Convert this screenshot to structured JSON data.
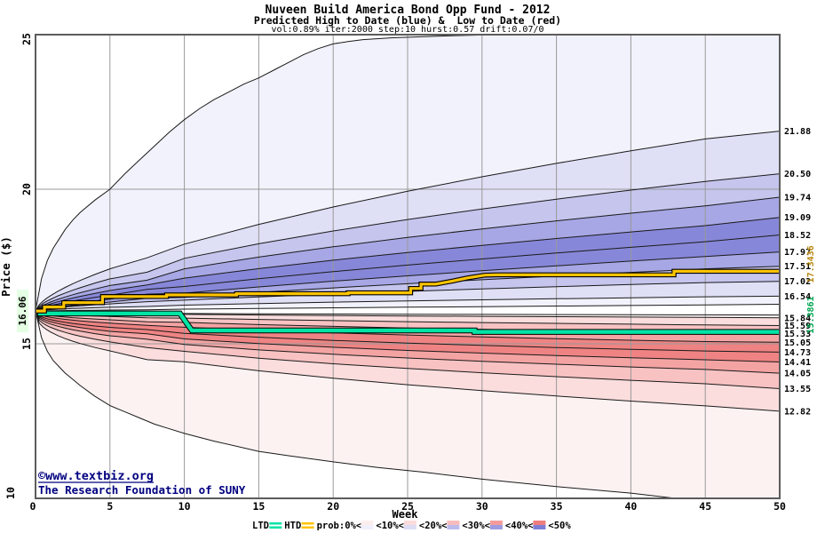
{
  "chart_data": {
    "type": "fan",
    "title": "Nuveen Build America Bond Opp Fund - 2012",
    "subtitle": "Predicted High to Date (blue) &  Low to Date (red)",
    "params": "vol:0.89% iter:2000 step:10 hurst:0.57 drift:0.07/0",
    "xlabel": "Week",
    "ylabel": "Price ($)",
    "xlim": [
      0,
      50
    ],
    "ylim": [
      10,
      25
    ],
    "x_ticks": [
      0,
      5,
      10,
      15,
      20,
      25,
      30,
      35,
      40,
      45,
      50
    ],
    "y_ticks": [
      25,
      20,
      15,
      10
    ],
    "grid_weeks": [
      5,
      10,
      15,
      20,
      25,
      30,
      35,
      40,
      45
    ],
    "grid_prices": [
      15,
      20
    ],
    "start": {
      "value": 16.06,
      "label": "16.06",
      "highlight_color": "#e4ffe4"
    },
    "high_fan": {
      "colors": [
        "#f2f2fd",
        "#dfdff6",
        "#c5c5ee",
        "#a7a7e5",
        "#8787d9"
      ],
      "outer_points": [
        [
          0,
          16.06
        ],
        [
          0.4,
          17.1
        ],
        [
          0.8,
          17.7
        ],
        [
          1.2,
          18.1
        ],
        [
          1.6,
          18.4
        ],
        [
          2,
          18.7
        ],
        [
          2.5,
          19.0
        ],
        [
          3,
          19.25
        ],
        [
          4,
          19.65
        ],
        [
          5,
          20.0
        ],
        [
          6,
          20.5
        ],
        [
          7,
          20.95
        ],
        [
          8,
          21.4
        ],
        [
          9,
          21.85
        ],
        [
          10,
          22.25
        ],
        [
          11,
          22.6
        ],
        [
          12,
          22.9
        ],
        [
          13,
          23.15
        ],
        [
          14,
          23.4
        ],
        [
          15,
          23.6
        ],
        [
          16,
          23.85
        ],
        [
          17,
          24.1
        ],
        [
          18,
          24.35
        ],
        [
          19,
          24.55
        ],
        [
          20,
          24.7
        ],
        [
          21,
          24.78
        ],
        [
          22,
          24.84
        ],
        [
          24,
          24.9
        ],
        [
          27,
          24.95
        ],
        [
          31,
          25.0
        ],
        [
          36,
          25.05
        ],
        [
          50,
          25.2
        ]
      ],
      "boundaries": [
        {
          "end": 21.88,
          "k": 0.63,
          "label": "21.88"
        },
        {
          "end": 20.5,
          "k": 0.63,
          "label": "20.50"
        },
        {
          "end": 19.74,
          "k": 0.65,
          "label": "19.74"
        },
        {
          "end": 19.09,
          "k": 0.66,
          "label": "19.09"
        },
        {
          "end": 18.52,
          "k": 0.68,
          "label": "18.52"
        },
        {
          "end": 17.97,
          "k": 0.7,
          "label": "17.97"
        },
        {
          "end": 17.51,
          "k": 0.7,
          "label": "17.51"
        },
        {
          "end": 17.02,
          "k": 0.62,
          "label": "17.02"
        },
        {
          "end": 16.54,
          "k": 0.6,
          "label": "16.54"
        }
      ],
      "inner": {
        "end": 16.28,
        "k": 0.85
      }
    },
    "low_fan": {
      "colors": [
        "#fdf2f2",
        "#fbdddd",
        "#f8c2c2",
        "#f4a3a3",
        "#ef8383"
      ],
      "outer_points": [
        [
          0,
          16.06
        ],
        [
          0.4,
          15.2
        ],
        [
          0.8,
          14.75
        ],
        [
          1.2,
          14.45
        ],
        [
          1.6,
          14.25
        ],
        [
          2,
          14.05
        ],
        [
          2.5,
          13.85
        ],
        [
          3,
          13.65
        ],
        [
          4,
          13.3
        ],
        [
          5,
          13.0
        ],
        [
          6,
          12.8
        ],
        [
          7,
          12.6
        ],
        [
          8,
          12.4
        ],
        [
          9,
          12.25
        ],
        [
          10,
          12.1
        ],
        [
          12,
          11.85
        ],
        [
          15,
          11.52
        ],
        [
          17,
          11.38
        ],
        [
          20,
          11.18
        ],
        [
          23,
          11.0
        ],
        [
          26,
          10.85
        ],
        [
          30,
          10.62
        ],
        [
          35,
          10.38
        ],
        [
          40,
          10.17
        ],
        [
          43,
          10.0
        ],
        [
          46,
          9.85
        ],
        [
          50,
          9.7
        ]
      ],
      "boundaries": [
        {
          "end": 15.84,
          "k": 0.42,
          "label": "15.84"
        },
        {
          "end": 15.59,
          "k": 0.42,
          "label": "15.59"
        },
        {
          "end": 15.33,
          "k": 0.41,
          "label": "15.33"
        },
        {
          "end": 15.05,
          "k": 0.41,
          "label": "15.05"
        },
        {
          "end": 14.73,
          "k": 0.4,
          "label": "14.73"
        },
        {
          "end": 14.41,
          "k": 0.4,
          "label": "14.41"
        },
        {
          "end": 14.05,
          "k": 0.4,
          "label": "14.05"
        },
        {
          "end": 13.55,
          "k": 0.4,
          "label": "13.55"
        },
        {
          "end": 12.82,
          "k": 0.4,
          "label": "12.82"
        }
      ],
      "inner": {
        "end": 15.93,
        "k": 0.3
      }
    },
    "htd": {
      "name": "HTD",
      "color": "#ffc400",
      "final_label": "17.3436",
      "final_value": 17.3436,
      "label_color": "#b8860b",
      "points": [
        [
          0,
          16.06
        ],
        [
          0.6,
          16.06
        ],
        [
          0.6,
          16.19
        ],
        [
          1.9,
          16.19
        ],
        [
          1.9,
          16.33
        ],
        [
          4.5,
          16.33
        ],
        [
          4.5,
          16.53
        ],
        [
          8.8,
          16.53
        ],
        [
          8.8,
          16.58
        ],
        [
          13.5,
          16.58
        ],
        [
          13.5,
          16.62
        ],
        [
          21,
          16.62
        ],
        [
          21,
          16.65
        ],
        [
          25.2,
          16.65
        ],
        [
          25.2,
          16.79
        ],
        [
          25.9,
          16.79
        ],
        [
          25.9,
          16.93
        ],
        [
          26.9,
          16.93
        ],
        [
          28,
          17.03
        ],
        [
          29,
          17.13
        ],
        [
          30.2,
          17.22
        ],
        [
          31,
          17.23
        ],
        [
          42.9,
          17.23
        ],
        [
          42.9,
          17.3436
        ],
        [
          50,
          17.3436
        ]
      ]
    },
    "ltd": {
      "name": "LTD",
      "color": "#00e4a4",
      "final_label": "15.3861",
      "final_value": 15.3861,
      "label_color": "#00a551",
      "points": [
        [
          0,
          16.06
        ],
        [
          0.3,
          16.06
        ],
        [
          0.3,
          15.98
        ],
        [
          9.7,
          15.98
        ],
        [
          10.5,
          15.43
        ],
        [
          29.5,
          15.43
        ],
        [
          29.5,
          15.3861
        ],
        [
          50,
          15.3861
        ]
      ]
    },
    "legend": {
      "ltd_label": "LTD",
      "htd_label": "HTD",
      "prob_labels": [
        "prob:0%<",
        "<10%<",
        "<20%<",
        "<30%<",
        "<40%<",
        "<50%"
      ],
      "swatch_red": [
        "#fdeeee",
        "#fbdada",
        "#f8bcbc",
        "#f49c9c",
        "#ef7d7d"
      ],
      "swatch_blue": [
        "#f0f0fc",
        "#dcdcf5",
        "#bcbcec",
        "#9c9ce2",
        "#7d7dd8"
      ]
    },
    "watermark": {
      "line1": "©www.textbiz.org",
      "line2": "The Research Foundation of SUNY",
      "color": "#000080"
    }
  }
}
